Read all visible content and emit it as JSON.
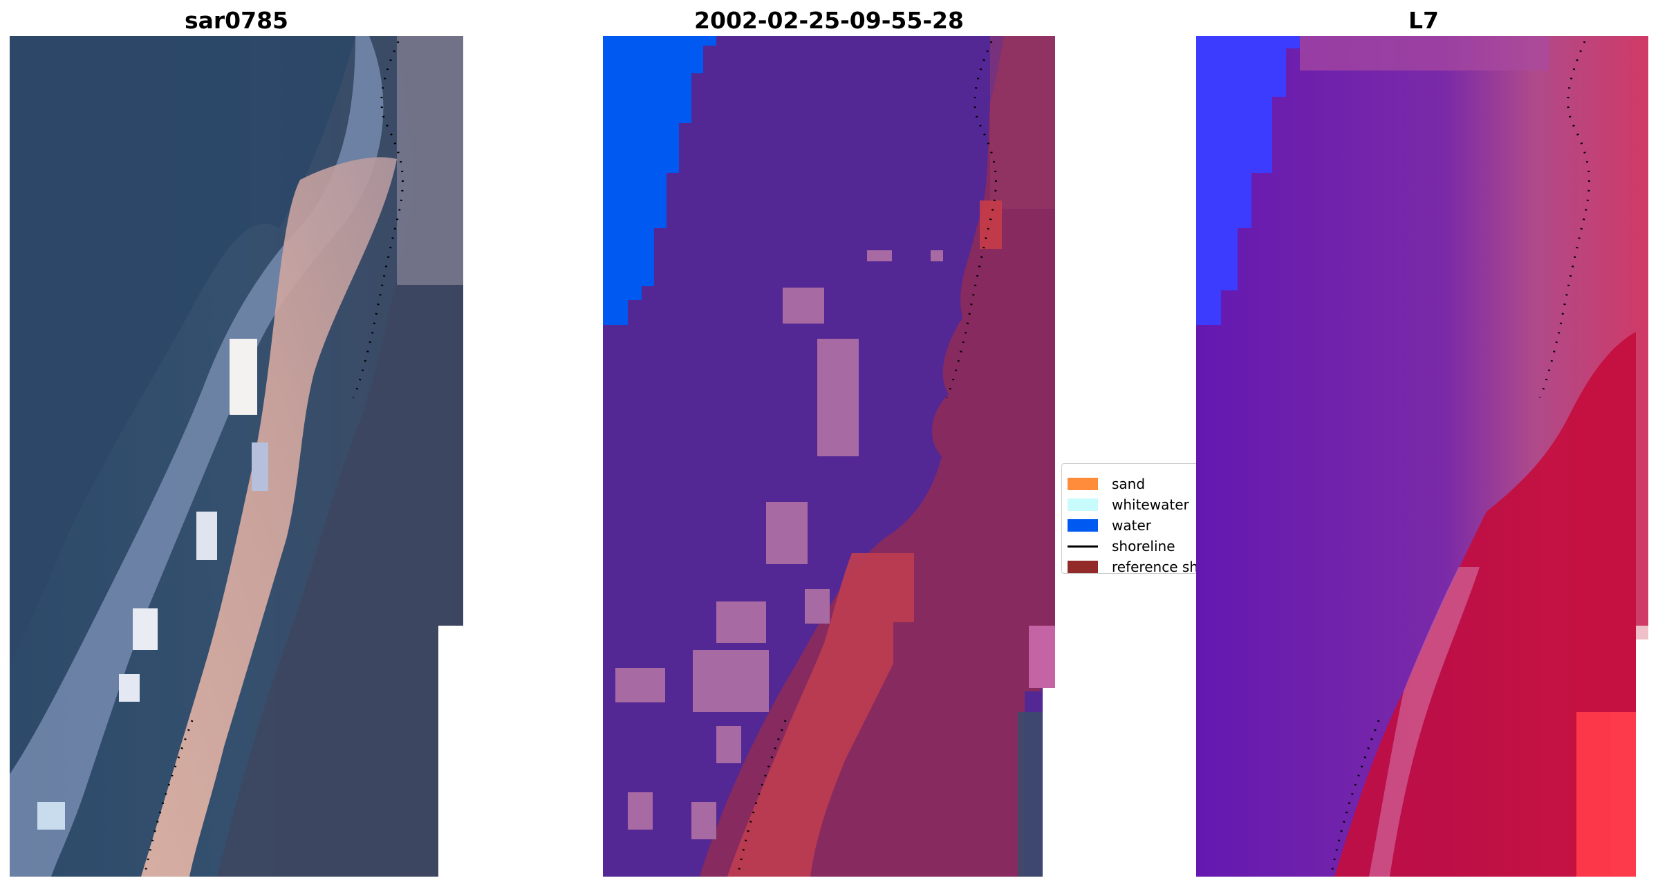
{
  "panels": {
    "rgb": {
      "title": "sar0785"
    },
    "classified": {
      "title": "2002-02-25-09-55-28"
    },
    "index": {
      "title": "L7"
    }
  },
  "legend": {
    "items": [
      {
        "label": "sand",
        "color": "#ff8c3a",
        "kind": "patch"
      },
      {
        "label": "whitewater",
        "color": "#c8fcfc",
        "kind": "patch"
      },
      {
        "label": "water",
        "color": "#0059f0",
        "kind": "patch"
      },
      {
        "label": "shoreline",
        "color": "#000000",
        "kind": "line"
      },
      {
        "label": "reference shoreline",
        "color": "#932a2a",
        "kind": "patch"
      }
    ]
  },
  "colors": {
    "rgb_water": "#2e4a6a",
    "rgb_land": "#3c4664",
    "rgb_sand": "#e6b4a8",
    "rgb_foam": "#c0cae6",
    "class_land": "#542894",
    "class_water": "#0059f0",
    "class_whitewater_tint": "#a86aa2",
    "class_sand_tint": "#bc3c50",
    "class_shore_pink": "#8c2a5a",
    "index_purple": "#6a1eb0",
    "index_pink": "#c83c6c",
    "index_red": "#e0143a",
    "index_blue": "#3c3cff"
  }
}
